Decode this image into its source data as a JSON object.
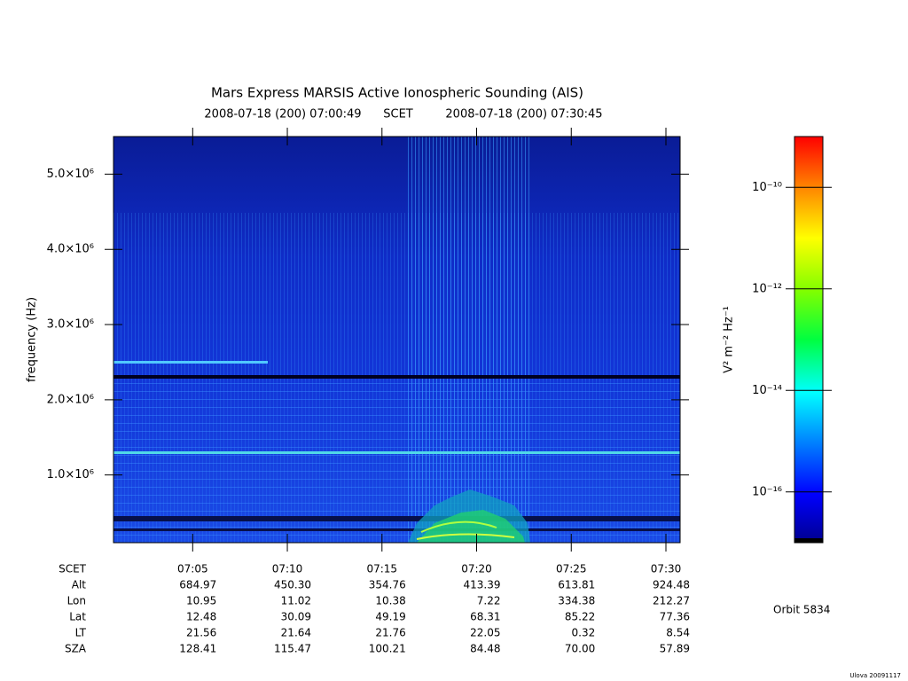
{
  "chart_data": {
    "type": "spectrogram",
    "title": "Mars Express MARSIS Active Ionospheric Sounding (AIS)",
    "subtitle_start": "2008-07-18 (200) 07:00:49",
    "subtitle_scale": "SCET",
    "subtitle_end": "2008-07-18 (200) 07:30:45",
    "y_label": "frequency (Hz)",
    "xlim": [
      "07:00:49",
      "07:30:45"
    ],
    "xticks": [
      "07:05",
      "07:10",
      "07:15",
      "07:20",
      "07:25",
      "07:30"
    ],
    "ylim": [
      100000,
      5500000
    ],
    "yticks": [
      {
        "value": 1000000,
        "label": "1.0×10⁶"
      },
      {
        "value": 2000000,
        "label": "2.0×10⁶"
      },
      {
        "value": 3000000,
        "label": "3.0×10⁶"
      },
      {
        "value": 4000000,
        "label": "4.0×10⁶"
      },
      {
        "value": 5000000,
        "label": "5.0×10⁶"
      }
    ],
    "colorbar": {
      "label": "V² m⁻² Hz⁻¹",
      "log": true,
      "lim": [
        1e-17,
        1e-09
      ],
      "ticks": [
        {
          "value": 1e-16,
          "label": "10⁻¹⁶"
        },
        {
          "value": 1e-14,
          "label": "10⁻¹⁴"
        },
        {
          "value": 1e-12,
          "label": "10⁻¹²"
        },
        {
          "value": 1e-10,
          "label": "10⁻¹⁰"
        }
      ]
    },
    "ephemeris": {
      "scet_label": "SCET",
      "rows": [
        {
          "label": "Alt",
          "values": [
            "684.97",
            "450.30",
            "354.76",
            "413.39",
            "613.81",
            "924.48"
          ]
        },
        {
          "label": "Lon",
          "values": [
            "10.95",
            "11.02",
            "10.38",
            "7.22",
            "334.38",
            "212.27"
          ]
        },
        {
          "label": "Lat",
          "values": [
            "12.48",
            "30.09",
            "49.19",
            "68.31",
            "85.22",
            "77.36"
          ]
        },
        {
          "label": "LT",
          "values": [
            "21.56",
            "21.64",
            "21.76",
            "22.05",
            "0.32",
            "8.54"
          ]
        },
        {
          "label": "SZA",
          "values": [
            "128.41",
            "115.47",
            "100.21",
            "84.48",
            "70.00",
            "57.89"
          ]
        }
      ]
    },
    "orbit": "Orbit 5834",
    "footer": "Ulova 20091117"
  }
}
